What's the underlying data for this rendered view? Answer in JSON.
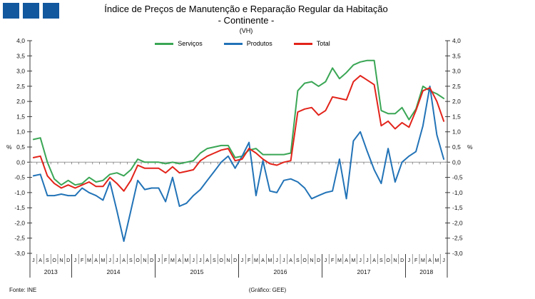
{
  "branding": {
    "logo_color": "#11589E",
    "logo_squares": 3
  },
  "header": {
    "title": "Índice de Preços de Manutenção e Reparação Regular da Habitação",
    "subtitle": "- Continente -",
    "unit_note": "(VH)"
  },
  "footer": {
    "source": "Fonte: INE",
    "credit": "(Gráfico: GEE)"
  },
  "chart_data": {
    "type": "line",
    "title": "Índice de Preços de Manutenção e Reparação Regular da Habitação - Continente - (VH)",
    "ylabel_left": "%",
    "ylabel_right": "%",
    "grid": false,
    "legend_position": "top-center",
    "axis": {
      "ymin": -3.0,
      "ymax": 4.0,
      "tick_step": 0.5
    },
    "y_tick_values": [
      4.0,
      3.5,
      3.0,
      2.5,
      2.0,
      1.5,
      1.0,
      0.5,
      0.0,
      -0.5,
      -1.0,
      -1.5,
      -2.0,
      -2.5,
      -3.0
    ],
    "y_tick_labels": [
      "4,0",
      "3,5",
      "3,0",
      "2,5",
      "2,0",
      "1,5",
      "1,0",
      "0,5",
      "0,0",
      "-0,5",
      "-1,0",
      "-1,5",
      "-2,0",
      "-2,5",
      "-3,0"
    ],
    "x_range_note": "monthly, Jul 2013 to Jun 2018",
    "month_labels": [
      "J",
      "A",
      "S",
      "O",
      "N",
      "D",
      "J",
      "F",
      "M",
      "A",
      "M",
      "J",
      "J",
      "A",
      "S",
      "O",
      "N",
      "D",
      "J",
      "F",
      "M",
      "A",
      "M",
      "J",
      "J",
      "A",
      "S",
      "O",
      "N",
      "D",
      "J",
      "F",
      "M",
      "A",
      "M",
      "J",
      "J",
      "A",
      "S",
      "O",
      "N",
      "D",
      "J",
      "F",
      "M",
      "A",
      "M",
      "J",
      "J",
      "A",
      "S",
      "O",
      "N",
      "D",
      "J",
      "F",
      "M",
      "A",
      "M",
      "J"
    ],
    "year_groups": [
      {
        "label": "2013",
        "count": 6
      },
      {
        "label": "2014",
        "count": 12
      },
      {
        "label": "2015",
        "count": 12
      },
      {
        "label": "2016",
        "count": 12
      },
      {
        "label": "2017",
        "count": 12
      },
      {
        "label": "2018",
        "count": 6
      }
    ],
    "colors": {
      "axis": "#3a3a3a",
      "zero_line": "#999999",
      "text": "#111111"
    },
    "series": [
      {
        "name": "Serviços",
        "color": "#3AA655",
        "values": [
          0.75,
          0.8,
          0,
          -0.55,
          -0.75,
          -0.6,
          -0.75,
          -0.7,
          -0.5,
          -0.65,
          -0.6,
          -0.4,
          -0.35,
          -0.45,
          -0.25,
          0.1,
          0,
          0,
          0,
          -0.05,
          0,
          -0.05,
          0,
          0.05,
          0.3,
          0.45,
          0.5,
          0.55,
          0.55,
          0.15,
          0.2,
          0.4,
          0.45,
          0.25,
          0.25,
          0.25,
          0.25,
          0.3,
          2.35,
          2.6,
          2.65,
          2.5,
          2.65,
          3.1,
          2.75,
          2.95,
          3.2,
          3.3,
          3.35,
          3.35,
          1.7,
          1.6,
          1.6,
          1.8,
          1.4,
          1.75,
          2.5,
          2.35,
          2.25,
          2.1
        ]
      },
      {
        "name": "Produtos",
        "color": "#2273B7",
        "values": [
          -0.45,
          -0.4,
          -1.1,
          -1.1,
          -1.05,
          -1.1,
          -1.1,
          -0.85,
          -1,
          -1.1,
          -1.25,
          -0.65,
          -1.6,
          -2.6,
          -1.6,
          -0.6,
          -0.9,
          -0.85,
          -0.85,
          -1.3,
          -0.5,
          -1.45,
          -1.35,
          -1.1,
          -0.9,
          -0.6,
          -0.3,
          0,
          0.2,
          -0.2,
          0.2,
          0.65,
          -1.1,
          0.05,
          -0.95,
          -1,
          -0.6,
          -0.55,
          -0.65,
          -0.85,
          -1.2,
          -1.1,
          -1,
          -0.95,
          0.1,
          -1.2,
          0.7,
          1,
          0.35,
          -0.25,
          -0.7,
          0.45,
          -0.65,
          0,
          0.2,
          0.35,
          1.2,
          2.5,
          0.9,
          0.1
        ]
      },
      {
        "name": "Total",
        "color": "#E2231A",
        "values": [
          0.15,
          0.2,
          -0.45,
          -0.7,
          -0.85,
          -0.75,
          -0.85,
          -0.75,
          -0.65,
          -0.8,
          -0.8,
          -0.5,
          -0.7,
          -0.95,
          -0.6,
          -0.1,
          -0.2,
          -0.2,
          -0.2,
          -0.35,
          -0.15,
          -0.35,
          -0.3,
          -0.25,
          0.05,
          0.2,
          0.3,
          0.4,
          0.45,
          0.05,
          0.1,
          0.45,
          0.3,
          0.1,
          -0.05,
          -0.1,
          0,
          0.05,
          1.65,
          1.75,
          1.8,
          1.55,
          1.7,
          2.15,
          2.1,
          2.05,
          2.65,
          2.85,
          2.7,
          2.55,
          1.2,
          1.35,
          1.1,
          1.3,
          1.15,
          1.7,
          2.35,
          2.45,
          2,
          1.35
        ]
      }
    ]
  }
}
